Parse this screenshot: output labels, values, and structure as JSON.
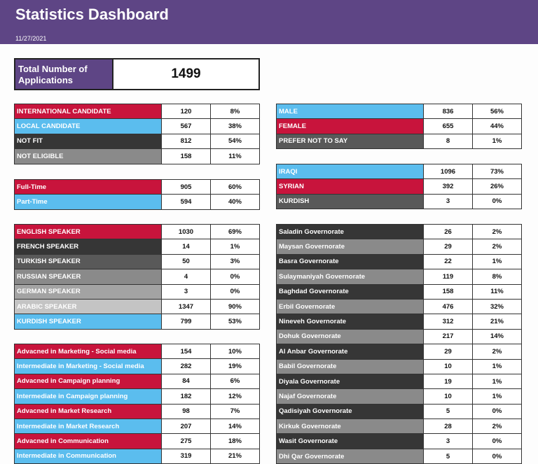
{
  "header": {
    "title": "Statistics Dashboard",
    "date": "11/27/2021"
  },
  "total": {
    "label": "Total Number of Applications",
    "value": "1499"
  },
  "colors": {
    "purple": "#5e4585",
    "red": "#c8143c",
    "blue": "#5bbdee",
    "dark": "#363636",
    "mid": "#595959",
    "gray": "#8a8a8a",
    "light": "#a3a3a3",
    "lighter": "#c4c4c4"
  },
  "tables": [
    {
      "id": "candidate-type",
      "side": "left",
      "rows": [
        {
          "label": "INTERNATIONAL CANDIDATE",
          "count": "120",
          "pct": "8%",
          "color": "red"
        },
        {
          "label": "LOCAL CANDIDATE",
          "count": "567",
          "pct": "38%",
          "color": "blue"
        },
        {
          "label": "NOT FIT",
          "count": "812",
          "pct": "54%",
          "color": "dark"
        },
        {
          "label": "NOT ELIGIBLE",
          "count": "158",
          "pct": "11%",
          "color": "gray"
        }
      ]
    },
    {
      "id": "gender",
      "side": "right",
      "rows": [
        {
          "label": "MALE",
          "count": "836",
          "pct": "56%",
          "color": "blue"
        },
        {
          "label": "FEMALE",
          "count": "655",
          "pct": "44%",
          "color": "red"
        },
        {
          "label": "PREFER NOT TO SAY",
          "count": "8",
          "pct": "1%",
          "color": "mid"
        }
      ]
    },
    {
      "id": "nationality",
      "side": "right",
      "rows": [
        {
          "label": "IRAQI",
          "count": "1096",
          "pct": "73%",
          "color": "blue"
        },
        {
          "label": "SYRIAN",
          "count": "392",
          "pct": "26%",
          "color": "red"
        },
        {
          "label": "KURDISH",
          "count": "3",
          "pct": "0%",
          "color": "mid"
        }
      ]
    },
    {
      "id": "job-type",
      "side": "left",
      "rows": [
        {
          "label": "Full-Time",
          "count": "905",
          "pct": "60%",
          "color": "red"
        },
        {
          "label": "Part-Time",
          "count": "594",
          "pct": "40%",
          "color": "blue"
        }
      ]
    },
    {
      "id": "languages",
      "side": "left",
      "rows": [
        {
          "label": "ENGLISH SPEAKER",
          "count": "1030",
          "pct": "69%",
          "color": "red"
        },
        {
          "label": "FRENCH SPEAKER",
          "count": "14",
          "pct": "1%",
          "color": "dark"
        },
        {
          "label": "TURKISH SPEAKER",
          "count": "50",
          "pct": "3%",
          "color": "mid"
        },
        {
          "label": "RUSSIAN SPEAKER",
          "count": "4",
          "pct": "0%",
          "color": "gray"
        },
        {
          "label": "GERMAN SPEAKER",
          "count": "3",
          "pct": "0%",
          "color": "light"
        },
        {
          "label": "ARABIC SPEAKER",
          "count": "1347",
          "pct": "90%",
          "color": "lighter"
        },
        {
          "label": "KURDISH SPEAKER",
          "count": "799",
          "pct": "53%",
          "color": "blue"
        }
      ]
    },
    {
      "id": "governorates",
      "side": "right",
      "rows": [
        {
          "label": "Saladin Governorate",
          "count": "26",
          "pct": "2%",
          "color": "dark"
        },
        {
          "label": "Maysan Governorate",
          "count": "29",
          "pct": "2%",
          "color": "gray"
        },
        {
          "label": "Basra Governorate",
          "count": "22",
          "pct": "1%",
          "color": "dark"
        },
        {
          "label": "Sulaymaniyah Governorate",
          "count": "119",
          "pct": "8%",
          "color": "gray"
        },
        {
          "label": "Baghdad Governorate",
          "count": "158",
          "pct": "11%",
          "color": "dark"
        },
        {
          "label": "Erbil Governorate",
          "count": "476",
          "pct": "32%",
          "color": "gray"
        },
        {
          "label": "Nineveh Governorate",
          "count": "312",
          "pct": "21%",
          "color": "dark"
        },
        {
          "label": "Dohuk Governorate",
          "count": "217",
          "pct": "14%",
          "color": "gray"
        },
        {
          "label": "Al Anbar Governorate",
          "count": "29",
          "pct": "2%",
          "color": "dark"
        },
        {
          "label": "Babil Governorate",
          "count": "10",
          "pct": "1%",
          "color": "gray"
        },
        {
          "label": "Diyala Governorate",
          "count": "19",
          "pct": "1%",
          "color": "dark"
        },
        {
          "label": "Najaf Governorate",
          "count": "10",
          "pct": "1%",
          "color": "gray"
        },
        {
          "label": "Qadisiyah Governorate",
          "count": "5",
          "pct": "0%",
          "color": "dark"
        },
        {
          "label": "Kirkuk Governorate",
          "count": "28",
          "pct": "2%",
          "color": "gray"
        },
        {
          "label": "Wasit Governorate",
          "count": "3",
          "pct": "0%",
          "color": "dark"
        },
        {
          "label": "Dhi Qar Governorate",
          "count": "5",
          "pct": "0%",
          "color": "gray"
        }
      ]
    },
    {
      "id": "skills",
      "side": "left",
      "rows": [
        {
          "label": "Advacned in Marketing - Social media",
          "count": "154",
          "pct": "10%",
          "color": "red"
        },
        {
          "label": "Intermediate in Marketing - Social media",
          "count": "282",
          "pct": "19%",
          "color": "blue"
        },
        {
          "label": "Advacned in Campaign planning",
          "count": "84",
          "pct": "6%",
          "color": "red"
        },
        {
          "label": "Intermediate in Campaign planning",
          "count": "182",
          "pct": "12%",
          "color": "blue"
        },
        {
          "label": "Advacned in Market Research",
          "count": "98",
          "pct": "7%",
          "color": "red"
        },
        {
          "label": "Intermediate in Market Research",
          "count": "207",
          "pct": "14%",
          "color": "blue"
        },
        {
          "label": "Advacned in Communication",
          "count": "275",
          "pct": "18%",
          "color": "red"
        },
        {
          "label": "Intermediate in Communication",
          "count": "319",
          "pct": "21%",
          "color": "blue"
        }
      ]
    }
  ]
}
